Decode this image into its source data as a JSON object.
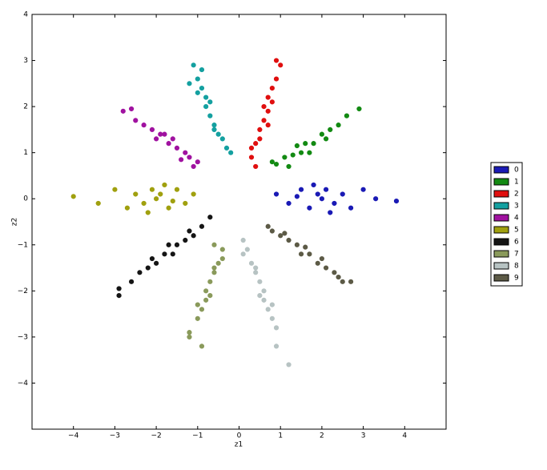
{
  "chart_data": {
    "type": "scatter",
    "xlabel": "z1",
    "ylabel": "z2",
    "xlim": [
      -5,
      5
    ],
    "ylim": [
      -5,
      4
    ],
    "xticks": [
      {
        "value": -4,
        "label": "−4"
      },
      {
        "value": -3,
        "label": "−3"
      },
      {
        "value": -2,
        "label": "−2"
      },
      {
        "value": -1,
        "label": "−1"
      },
      0,
      1,
      2,
      3,
      4
    ],
    "yticks": [
      {
        "value": -4,
        "label": "−4"
      },
      {
        "value": -3,
        "label": "−3"
      },
      {
        "value": -2,
        "label": "−2"
      },
      {
        "value": -1,
        "label": "−1"
      },
      0,
      1,
      2,
      3,
      4
    ],
    "legend": "outside-right",
    "series": [
      {
        "name": "0",
        "color": "#1a1ab5",
        "x": [
          0.9,
          1.2,
          1.5,
          1.7,
          1.9,
          2.0,
          2.1,
          2.3,
          2.5,
          2.7,
          3.0,
          3.3,
          3.8,
          1.8,
          2.2,
          1.4
        ],
        "y": [
          0.1,
          -0.1,
          0.2,
          -0.2,
          0.1,
          0.0,
          0.2,
          -0.1,
          0.1,
          -0.2,
          0.2,
          0.0,
          -0.05,
          0.3,
          -0.3,
          0.05
        ]
      },
      {
        "name": "1",
        "color": "#138a13",
        "x": [
          0.9,
          1.1,
          1.3,
          1.5,
          1.6,
          1.8,
          2.0,
          2.2,
          2.4,
          2.6,
          2.9,
          1.2,
          1.7,
          2.1,
          1.4,
          0.8
        ],
        "y": [
          0.75,
          0.9,
          0.95,
          1.0,
          1.2,
          1.2,
          1.4,
          1.5,
          1.6,
          1.8,
          1.95,
          0.7,
          1.0,
          1.3,
          1.15,
          0.8
        ]
      },
      {
        "name": "2",
        "color": "#e00f0f",
        "x": [
          0.3,
          0.4,
          0.5,
          0.6,
          0.7,
          0.7,
          0.8,
          0.9,
          1.0,
          0.6,
          0.5,
          0.8,
          0.3,
          0.9,
          0.7,
          0.4
        ],
        "y": [
          0.9,
          1.2,
          1.5,
          1.7,
          1.9,
          2.2,
          2.4,
          2.6,
          2.9,
          2.0,
          1.3,
          2.1,
          1.1,
          3.0,
          1.6,
          0.7
        ]
      },
      {
        "name": "3",
        "color": "#14a0a0",
        "x": [
          -0.3,
          -0.5,
          -0.6,
          -0.7,
          -0.8,
          -0.8,
          -0.9,
          -1.0,
          -1.1,
          -0.7,
          -0.6,
          -1.0,
          -0.4,
          -0.9,
          -0.2,
          -1.2
        ],
        "y": [
          1.1,
          1.4,
          1.6,
          1.8,
          2.0,
          2.2,
          2.4,
          2.6,
          2.9,
          2.1,
          1.5,
          2.3,
          1.3,
          2.8,
          1.0,
          2.5
        ]
      },
      {
        "name": "4",
        "color": "#a012a0",
        "x": [
          -1.0,
          -1.2,
          -1.3,
          -1.5,
          -1.6,
          -1.8,
          -1.9,
          -2.1,
          -2.3,
          -2.5,
          -2.8,
          -1.4,
          -1.7,
          -2.0,
          -1.1,
          -2.6
        ],
        "y": [
          0.8,
          0.9,
          1.0,
          1.1,
          1.3,
          1.4,
          1.4,
          1.5,
          1.6,
          1.7,
          1.9,
          0.85,
          1.2,
          1.3,
          0.7,
          1.95
        ]
      },
      {
        "name": "5",
        "color": "#a0a00f",
        "x": [
          -1.1,
          -1.3,
          -1.5,
          -1.7,
          -1.9,
          -2.0,
          -2.1,
          -2.3,
          -2.5,
          -2.7,
          -3.0,
          -3.4,
          -4.0,
          -1.8,
          -2.2,
          -1.6
        ],
        "y": [
          0.1,
          -0.1,
          0.2,
          -0.2,
          0.1,
          0.0,
          0.2,
          -0.1,
          0.1,
          -0.2,
          0.2,
          -0.1,
          0.05,
          0.3,
          -0.3,
          -0.05
        ]
      },
      {
        "name": "6",
        "color": "#151515",
        "x": [
          -0.9,
          -1.1,
          -1.3,
          -1.5,
          -1.6,
          -1.8,
          -2.0,
          -2.2,
          -2.4,
          -2.6,
          -2.9,
          -1.2,
          -1.7,
          -2.1,
          -0.7,
          -2.9
        ],
        "y": [
          -0.6,
          -0.8,
          -0.9,
          -1.0,
          -1.2,
          -1.2,
          -1.4,
          -1.5,
          -1.6,
          -1.8,
          -1.95,
          -0.7,
          -1.0,
          -1.3,
          -0.4,
          -2.1
        ]
      },
      {
        "name": "7",
        "color": "#8a9a5b",
        "x": [
          -0.4,
          -0.5,
          -0.6,
          -0.7,
          -0.8,
          -0.8,
          -0.9,
          -1.0,
          -1.2,
          -0.7,
          -0.6,
          -1.0,
          -0.4,
          -0.9,
          -0.6,
          -1.2
        ],
        "y": [
          -1.1,
          -1.4,
          -1.6,
          -1.8,
          -2.0,
          -2.2,
          -2.4,
          -2.6,
          -2.9,
          -2.1,
          -1.5,
          -2.3,
          -1.3,
          -3.2,
          -1.0,
          -3.0
        ]
      },
      {
        "name": "8",
        "color": "#b7c3c3",
        "x": [
          0.2,
          0.3,
          0.4,
          0.5,
          0.6,
          0.6,
          0.7,
          0.8,
          0.9,
          0.5,
          0.4,
          0.8,
          0.1,
          0.9,
          0.1,
          1.2
        ],
        "y": [
          -1.1,
          -1.4,
          -1.6,
          -1.8,
          -2.0,
          -2.2,
          -2.4,
          -2.6,
          -2.8,
          -2.1,
          -1.5,
          -2.3,
          -1.2,
          -3.2,
          -0.9,
          -3.6
        ]
      },
      {
        "name": "9",
        "color": "#5c5a46",
        "x": [
          0.8,
          1.0,
          1.2,
          1.4,
          1.5,
          1.7,
          1.9,
          2.1,
          2.3,
          2.5,
          2.7,
          1.1,
          1.6,
          2.0,
          0.7,
          2.4
        ],
        "y": [
          -0.7,
          -0.8,
          -0.9,
          -1.0,
          -1.2,
          -1.2,
          -1.4,
          -1.5,
          -1.6,
          -1.8,
          -1.8,
          -0.75,
          -1.05,
          -1.3,
          -0.6,
          -1.7
        ]
      }
    ]
  }
}
